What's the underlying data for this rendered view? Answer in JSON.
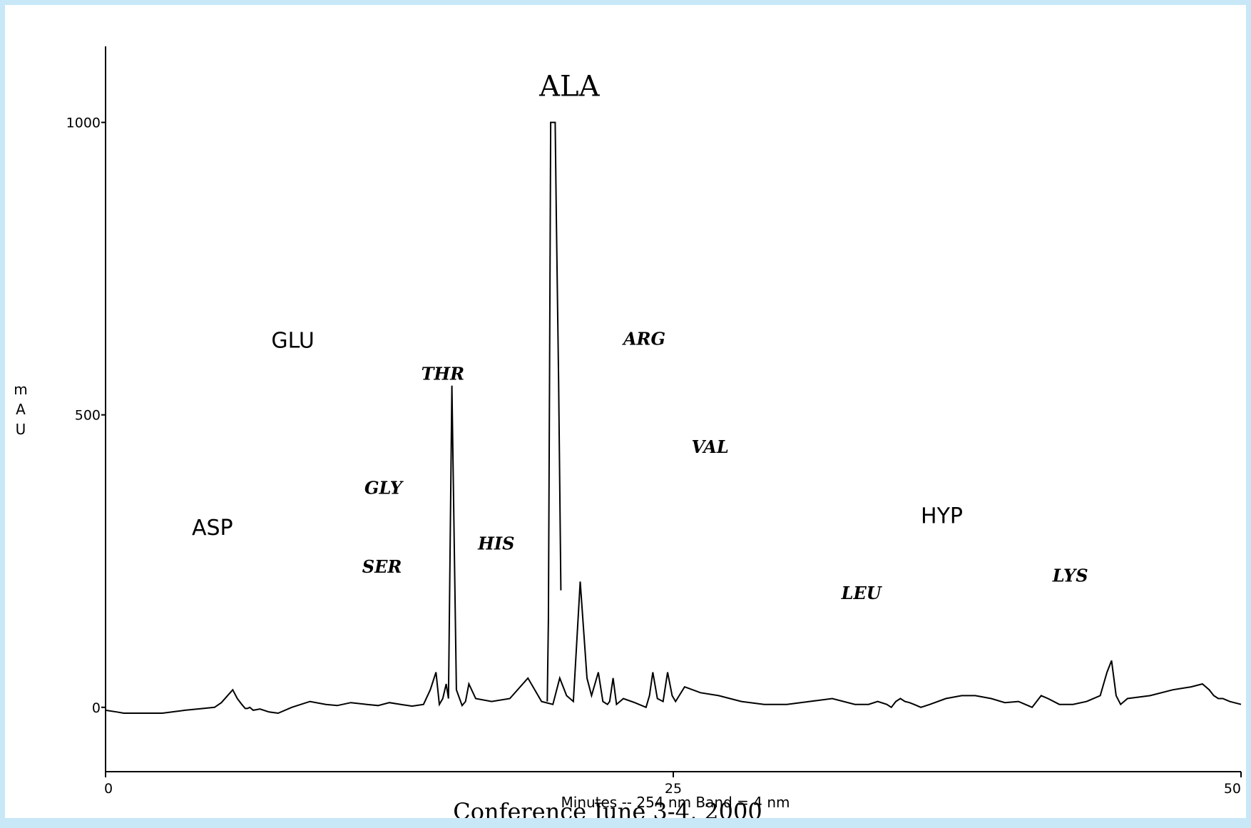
{
  "footer": {
    "caption": "Conference June 3-4, 2000"
  },
  "chart_data": {
    "type": "line",
    "title": "",
    "xlabel": "Minutes -- 254 nm Band = 4 nm",
    "ylabel": "mAU",
    "xlim": [
      0,
      50
    ],
    "ylim": [
      -110,
      1130
    ],
    "x_ticks": [
      0,
      25,
      50
    ],
    "x_tick_labels": [
      "0",
      "25",
      "50"
    ],
    "y_ticks": [
      0,
      500,
      1000
    ],
    "y_tick_labels": [
      "0",
      "500",
      "1000"
    ],
    "grid": false,
    "series": [
      {
        "color": "#000000",
        "x": [
          0,
          0.5,
          0.8,
          1.5,
          2.5,
          3.5,
          4.3,
          4.8,
          5.1,
          5.6,
          5.8,
          6.0,
          6.15,
          6.25,
          6.35,
          6.5,
          6.8,
          7.2,
          7.6,
          8.2,
          9.0,
          9.7,
          10.2,
          10.8,
          11.5,
          12.0,
          12.5,
          13.0,
          13.5,
          14.0,
          14.3,
          14.55,
          14.7,
          14.85,
          15.0,
          15.1,
          15.25,
          15.45,
          15.7,
          15.85,
          16.0,
          16.3,
          17.0,
          17.8,
          18.6,
          19.2,
          19.7,
          20.0,
          20.3,
          20.6,
          20.9,
          21.2,
          21.4,
          21.7,
          21.9,
          22.1,
          22.2,
          22.35,
          22.5,
          22.8,
          23.3,
          23.8,
          23.95,
          24.1,
          24.3,
          24.55,
          24.75,
          24.95,
          25.1,
          25.5,
          26.2,
          27.0,
          28.0,
          29.0,
          30.0,
          31.0,
          32.0,
          33.0,
          33.6,
          34.0,
          34.4,
          34.6,
          34.8,
          35.0,
          35.2,
          35.4,
          35.6,
          35.9,
          36.3,
          37.0,
          37.7,
          38.3,
          39.0,
          39.6,
          40.2,
          40.5,
          40.8,
          41.0,
          41.2,
          41.5,
          42.0,
          42.6,
          43.2,
          43.8,
          44.1,
          44.3,
          44.5,
          44.7,
          45.0,
          46.0,
          47.0,
          47.8,
          48.3,
          48.6,
          48.8,
          49.0,
          49.2,
          49.5,
          50.0
        ],
        "y": [
          -5,
          -8,
          -10,
          -10,
          -10,
          -5,
          -2,
          0,
          8,
          30,
          15,
          5,
          -2,
          -2,
          0,
          -5,
          -3,
          -8,
          -10,
          0,
          10,
          5,
          3,
          8,
          5,
          3,
          8,
          5,
          2,
          5,
          30,
          60,
          5,
          15,
          40,
          15,
          550,
          30,
          3,
          10,
          40,
          15,
          10,
          15,
          50,
          10,
          5,
          50,
          20,
          10,
          215,
          50,
          20,
          60,
          10,
          5,
          10,
          50,
          5,
          15,
          8,
          0,
          20,
          60,
          15,
          10,
          60,
          20,
          10,
          35,
          25,
          20,
          10,
          5,
          5,
          10,
          15,
          5,
          5,
          10,
          5,
          0,
          10,
          15,
          10,
          8,
          5,
          0,
          5,
          15,
          20,
          20,
          15,
          8,
          10,
          5,
          0,
          10,
          20,
          15,
          5,
          5,
          10,
          20,
          60,
          80,
          20,
          5,
          15,
          20,
          30,
          35,
          40,
          30,
          20,
          15,
          15,
          10,
          5
        ]
      }
    ],
    "peak_labels": [
      {
        "name": "ASP",
        "x": 3.8,
        "y": 295,
        "style": "plain"
      },
      {
        "name": "GLU",
        "x": 7.3,
        "y": 615,
        "style": "plain"
      },
      {
        "name": "SER",
        "x": 11.3,
        "y": 230,
        "style": "italic"
      },
      {
        "name": "GLY",
        "x": 11.4,
        "y": 365,
        "style": "italic"
      },
      {
        "name": "THR",
        "x": 13.9,
        "y": 560,
        "style": "italic"
      },
      {
        "name": "HIS",
        "x": 16.4,
        "y": 270,
        "style": "italic"
      },
      {
        "name": "ALA",
        "x": 19.1,
        "y": 1045,
        "style": "large"
      },
      {
        "name": "ARG",
        "x": 22.8,
        "y": 620,
        "style": "italic"
      },
      {
        "name": "VAL",
        "x": 25.8,
        "y": 435,
        "style": "italic"
      },
      {
        "name": "LEU",
        "x": 32.4,
        "y": 185,
        "style": "italic"
      },
      {
        "name": "HYP",
        "x": 35.9,
        "y": 315,
        "style": "plain"
      },
      {
        "name": "LYS",
        "x": 41.7,
        "y": 215,
        "style": "italic"
      }
    ]
  }
}
